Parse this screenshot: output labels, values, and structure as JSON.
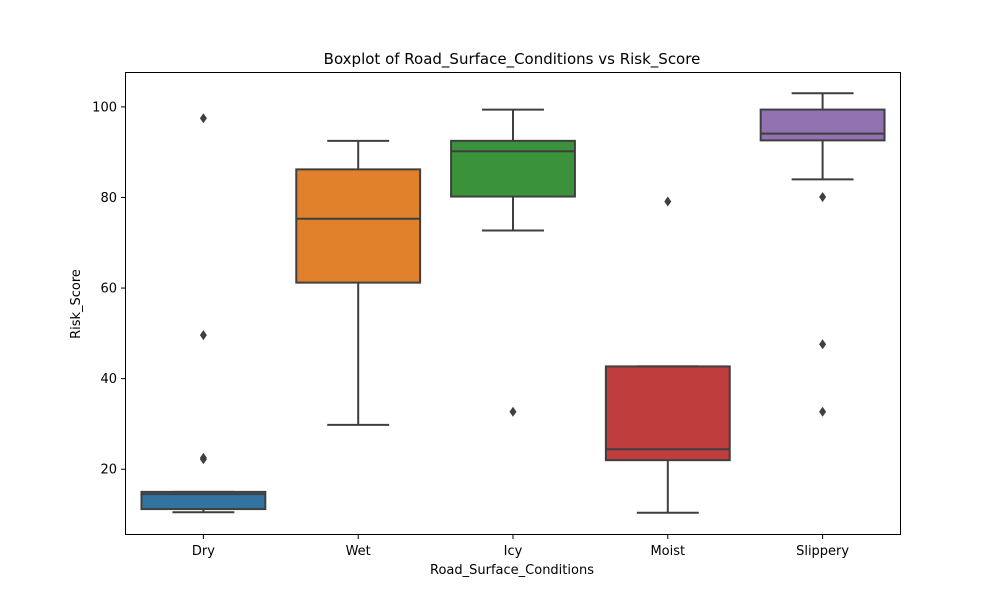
{
  "chart_data": {
    "type": "box",
    "title": "Boxplot of Road_Surface_Conditions vs Risk_Score",
    "xlabel": "Road_Surface_Conditions",
    "ylabel": "Risk_Score",
    "ylim": [
      5.7,
      107.7
    ],
    "yticks": [
      20,
      40,
      60,
      80,
      100
    ],
    "grid": false,
    "categories": [
      "Dry",
      "Wet",
      "Icy",
      "Moist",
      "Slippery"
    ],
    "boxes": [
      {
        "category": "Dry",
        "color": "#3274a1",
        "whisker_low": 10.5,
        "q1": 11.2,
        "median": 14.5,
        "q3": 15.0,
        "whisker_high": 15.0,
        "outliers": [
          97.5,
          49.6,
          22.5,
          22.2
        ]
      },
      {
        "category": "Wet",
        "color": "#e1812c",
        "whisker_low": 29.8,
        "q1": 61.2,
        "median": 75.3,
        "q3": 86.2,
        "whisker_high": 92.5,
        "outliers": []
      },
      {
        "category": "Icy",
        "color": "#3a923a",
        "whisker_low": 72.7,
        "q1": 80.2,
        "median": 90.2,
        "q3": 92.5,
        "whisker_high": 99.4,
        "outliers": [
          32.7
        ]
      },
      {
        "category": "Moist",
        "color": "#c03d3e",
        "whisker_low": 10.4,
        "q1": 22.0,
        "median": 24.4,
        "q3": 42.7,
        "whisker_high": 42.7,
        "outliers": [
          79.1
        ]
      },
      {
        "category": "Slippery",
        "color": "#9372b2",
        "whisker_low": 84.0,
        "q1": 92.6,
        "median": 94.1,
        "q3": 99.4,
        "whisker_high": 103.0,
        "outliers": [
          80.1,
          47.6,
          32.7
        ]
      }
    ]
  }
}
